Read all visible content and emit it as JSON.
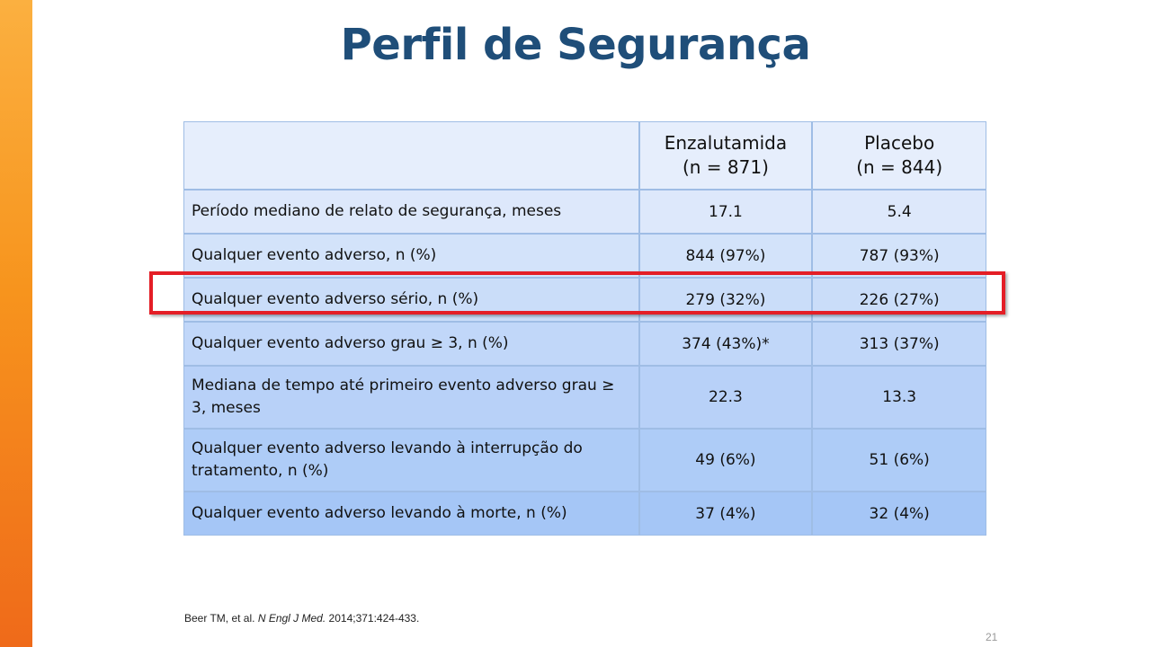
{
  "slide": {
    "title": "Perfil de Segurança",
    "page_number": "21"
  },
  "table": {
    "header": {
      "col1": "",
      "col2_line1": "Enzalutamida",
      "col2_line2": "(n = 871)",
      "col3_line1": "Placebo",
      "col3_line2": "(n = 844)"
    },
    "rows": [
      {
        "label": "Período mediano de relato de segurança, meses",
        "enza": "17.1",
        "placebo": "5.4"
      },
      {
        "label": "Qualquer evento adverso, n (%)",
        "enza": "844 (97%)",
        "placebo": "787 (93%)"
      },
      {
        "label": "Qualquer evento adverso sério, n (%)",
        "enza": "279 (32%)",
        "placebo": "226 (27%)",
        "highlighted": true
      },
      {
        "label": "Qualquer evento adverso grau ≥ 3, n (%)",
        "enza": "374 (43%)*",
        "placebo": "313 (37%)"
      },
      {
        "label": "Mediana de tempo até primeiro evento adverso grau ≥ 3, meses",
        "enza": "22.3",
        "placebo": "13.3"
      },
      {
        "label": "Qualquer evento adverso levando à interrupção do tratamento, n (%)",
        "enza": "49 (6%)",
        "placebo": "51 (6%)"
      },
      {
        "label": "Qualquer evento adverso levando à morte, n (%)",
        "enza": "37 (4%)",
        "placebo": "32 (4%)"
      }
    ]
  },
  "citation": {
    "authors": "Beer TM, et al.",
    "journal": "N Engl J Med.",
    "details": "2014;371:424-433."
  },
  "colors": {
    "accent_orange": "#f7941d",
    "title_blue": "#1f4e79",
    "highlight_red": "#e41e26"
  }
}
